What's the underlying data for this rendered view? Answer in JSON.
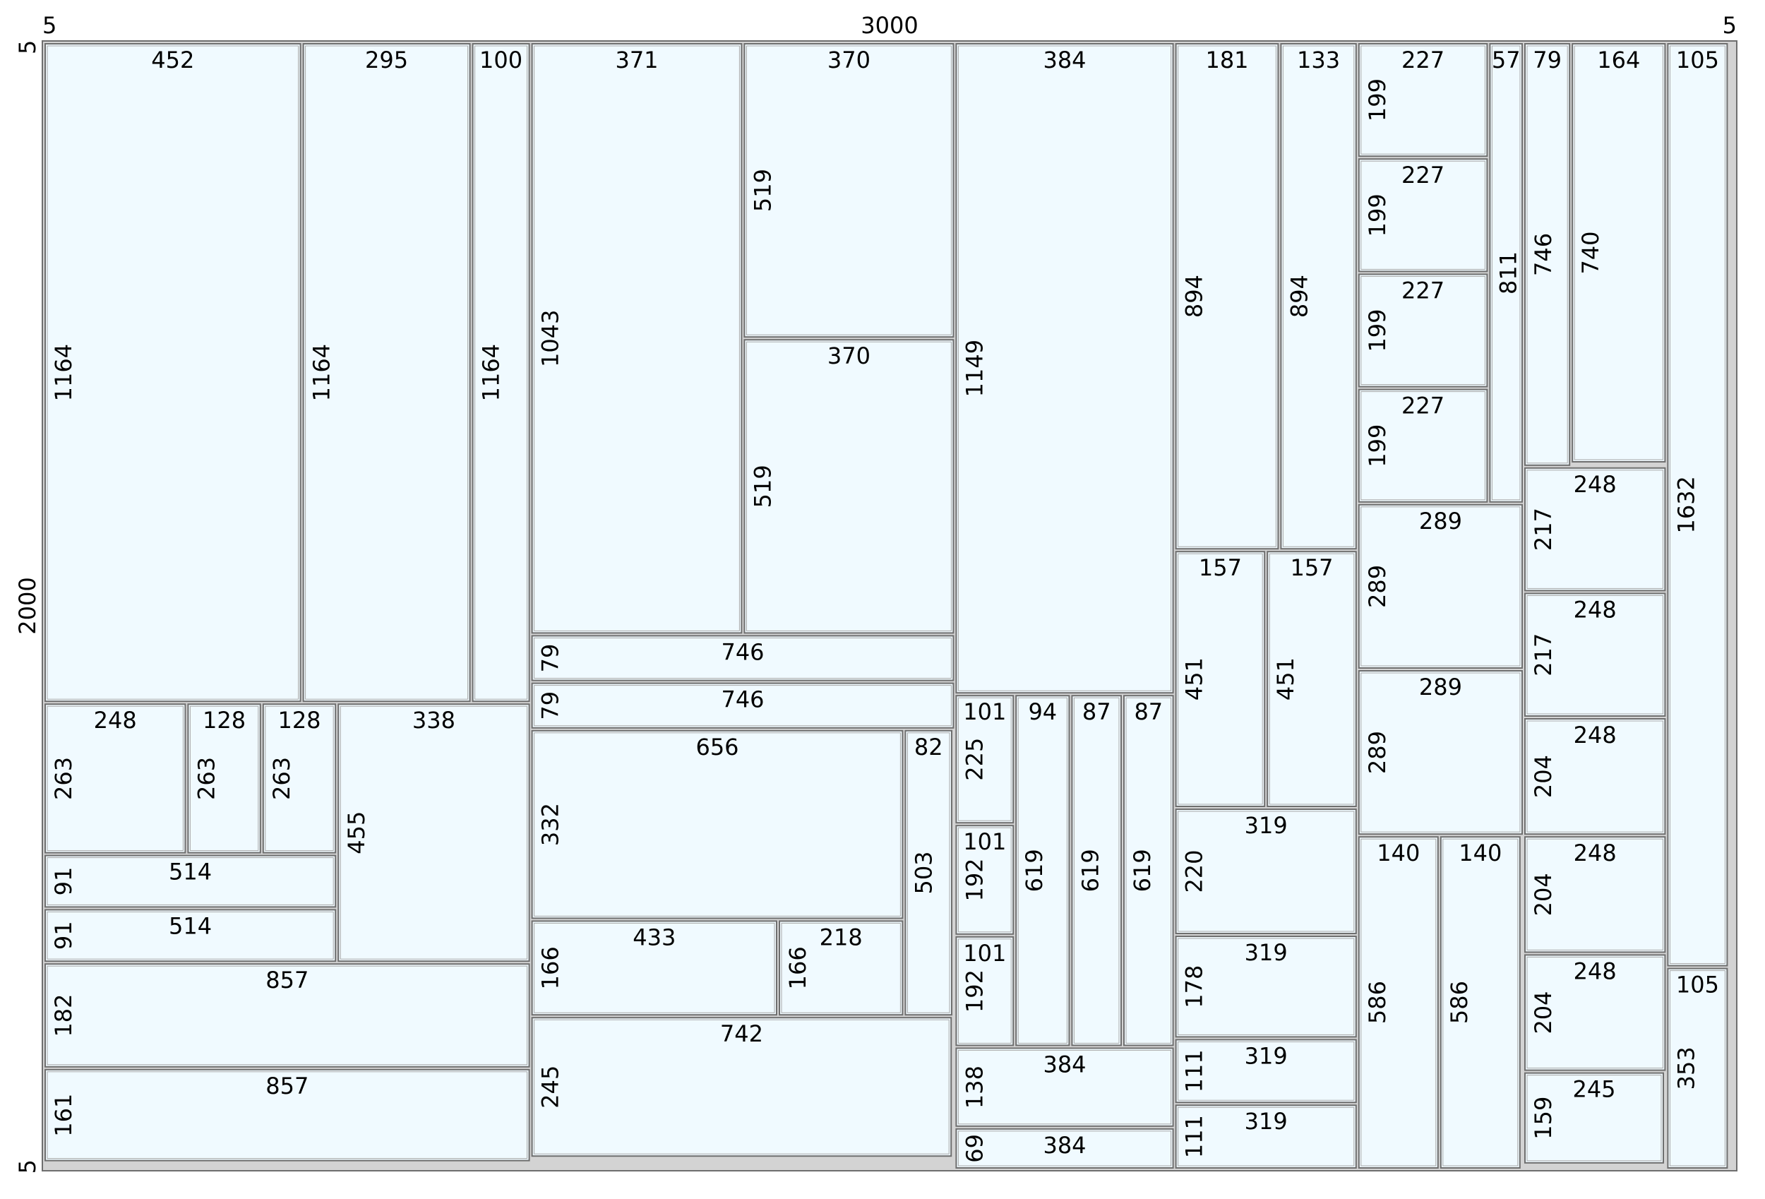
{
  "sheet": {
    "width_label": "3000",
    "height_label": "2000",
    "trim_left": "5",
    "trim_right": "5",
    "trim_top": "5",
    "trim_bottom": "5"
  },
  "colors": {
    "piece_fill": "#f0faff",
    "waste_fill": "#d3d3d3",
    "outline": "#6e6e6e",
    "inner_outline": "#a8a8a8"
  },
  "pieces": [
    {
      "w": "452",
      "h": "1164"
    },
    {
      "w": "295",
      "h": "1164"
    },
    {
      "w": "100",
      "h": "1164"
    },
    {
      "w": "248",
      "h": "263"
    },
    {
      "w": "128",
      "h": "263"
    },
    {
      "w": "128",
      "h": "263"
    },
    {
      "w": "514",
      "h": "91"
    },
    {
      "w": "514",
      "h": "91"
    },
    {
      "w": "338",
      "h": "455"
    },
    {
      "w": "857",
      "h": "182"
    },
    {
      "w": "857",
      "h": "161"
    },
    {
      "w": "371",
      "h": "1043"
    },
    {
      "w": "370",
      "h": "519"
    },
    {
      "w": "370",
      "h": "519"
    },
    {
      "w": "746",
      "h": "79"
    },
    {
      "w": "746",
      "h": "79"
    },
    {
      "w": "656",
      "h": "332"
    },
    {
      "w": "433",
      "h": "166"
    },
    {
      "w": "218",
      "h": "166"
    },
    {
      "w": "82",
      "h": "503"
    },
    {
      "w": "742",
      "h": "245"
    },
    {
      "w": "384",
      "h": "1149"
    },
    {
      "w": "101",
      "h": "225"
    },
    {
      "w": "101",
      "h": "192"
    },
    {
      "w": "101",
      "h": "192"
    },
    {
      "w": "94",
      "h": "619"
    },
    {
      "w": "87",
      "h": "619"
    },
    {
      "w": "87",
      "h": "619"
    },
    {
      "w": "384",
      "h": "138"
    },
    {
      "w": "384",
      "h": "69"
    },
    {
      "w": "181",
      "h": "894"
    },
    {
      "w": "133",
      "h": "894"
    },
    {
      "w": "157",
      "h": "451"
    },
    {
      "w": "157",
      "h": "451"
    },
    {
      "w": "319",
      "h": "220"
    },
    {
      "w": "319",
      "h": "178"
    },
    {
      "w": "319",
      "h": "111"
    },
    {
      "w": "319",
      "h": "111"
    },
    {
      "w": "227",
      "h": "199"
    },
    {
      "w": "227",
      "h": "199"
    },
    {
      "w": "227",
      "h": "199"
    },
    {
      "w": "227",
      "h": "199"
    },
    {
      "w": "57",
      "h": "811"
    },
    {
      "w": "289",
      "h": "289"
    },
    {
      "w": "289",
      "h": "289"
    },
    {
      "w": "140",
      "h": "586"
    },
    {
      "w": "140",
      "h": "586"
    },
    {
      "w": "79",
      "h": "746"
    },
    {
      "w": "164",
      "h": "740"
    },
    {
      "w": "248",
      "h": "217"
    },
    {
      "w": "248",
      "h": "217"
    },
    {
      "w": "248",
      "h": "204"
    },
    {
      "w": "248",
      "h": "204"
    },
    {
      "w": "248",
      "h": "204"
    },
    {
      "w": "245",
      "h": "159"
    },
    {
      "w": "105",
      "h": "1632"
    },
    {
      "w": "105",
      "h": "353"
    }
  ]
}
